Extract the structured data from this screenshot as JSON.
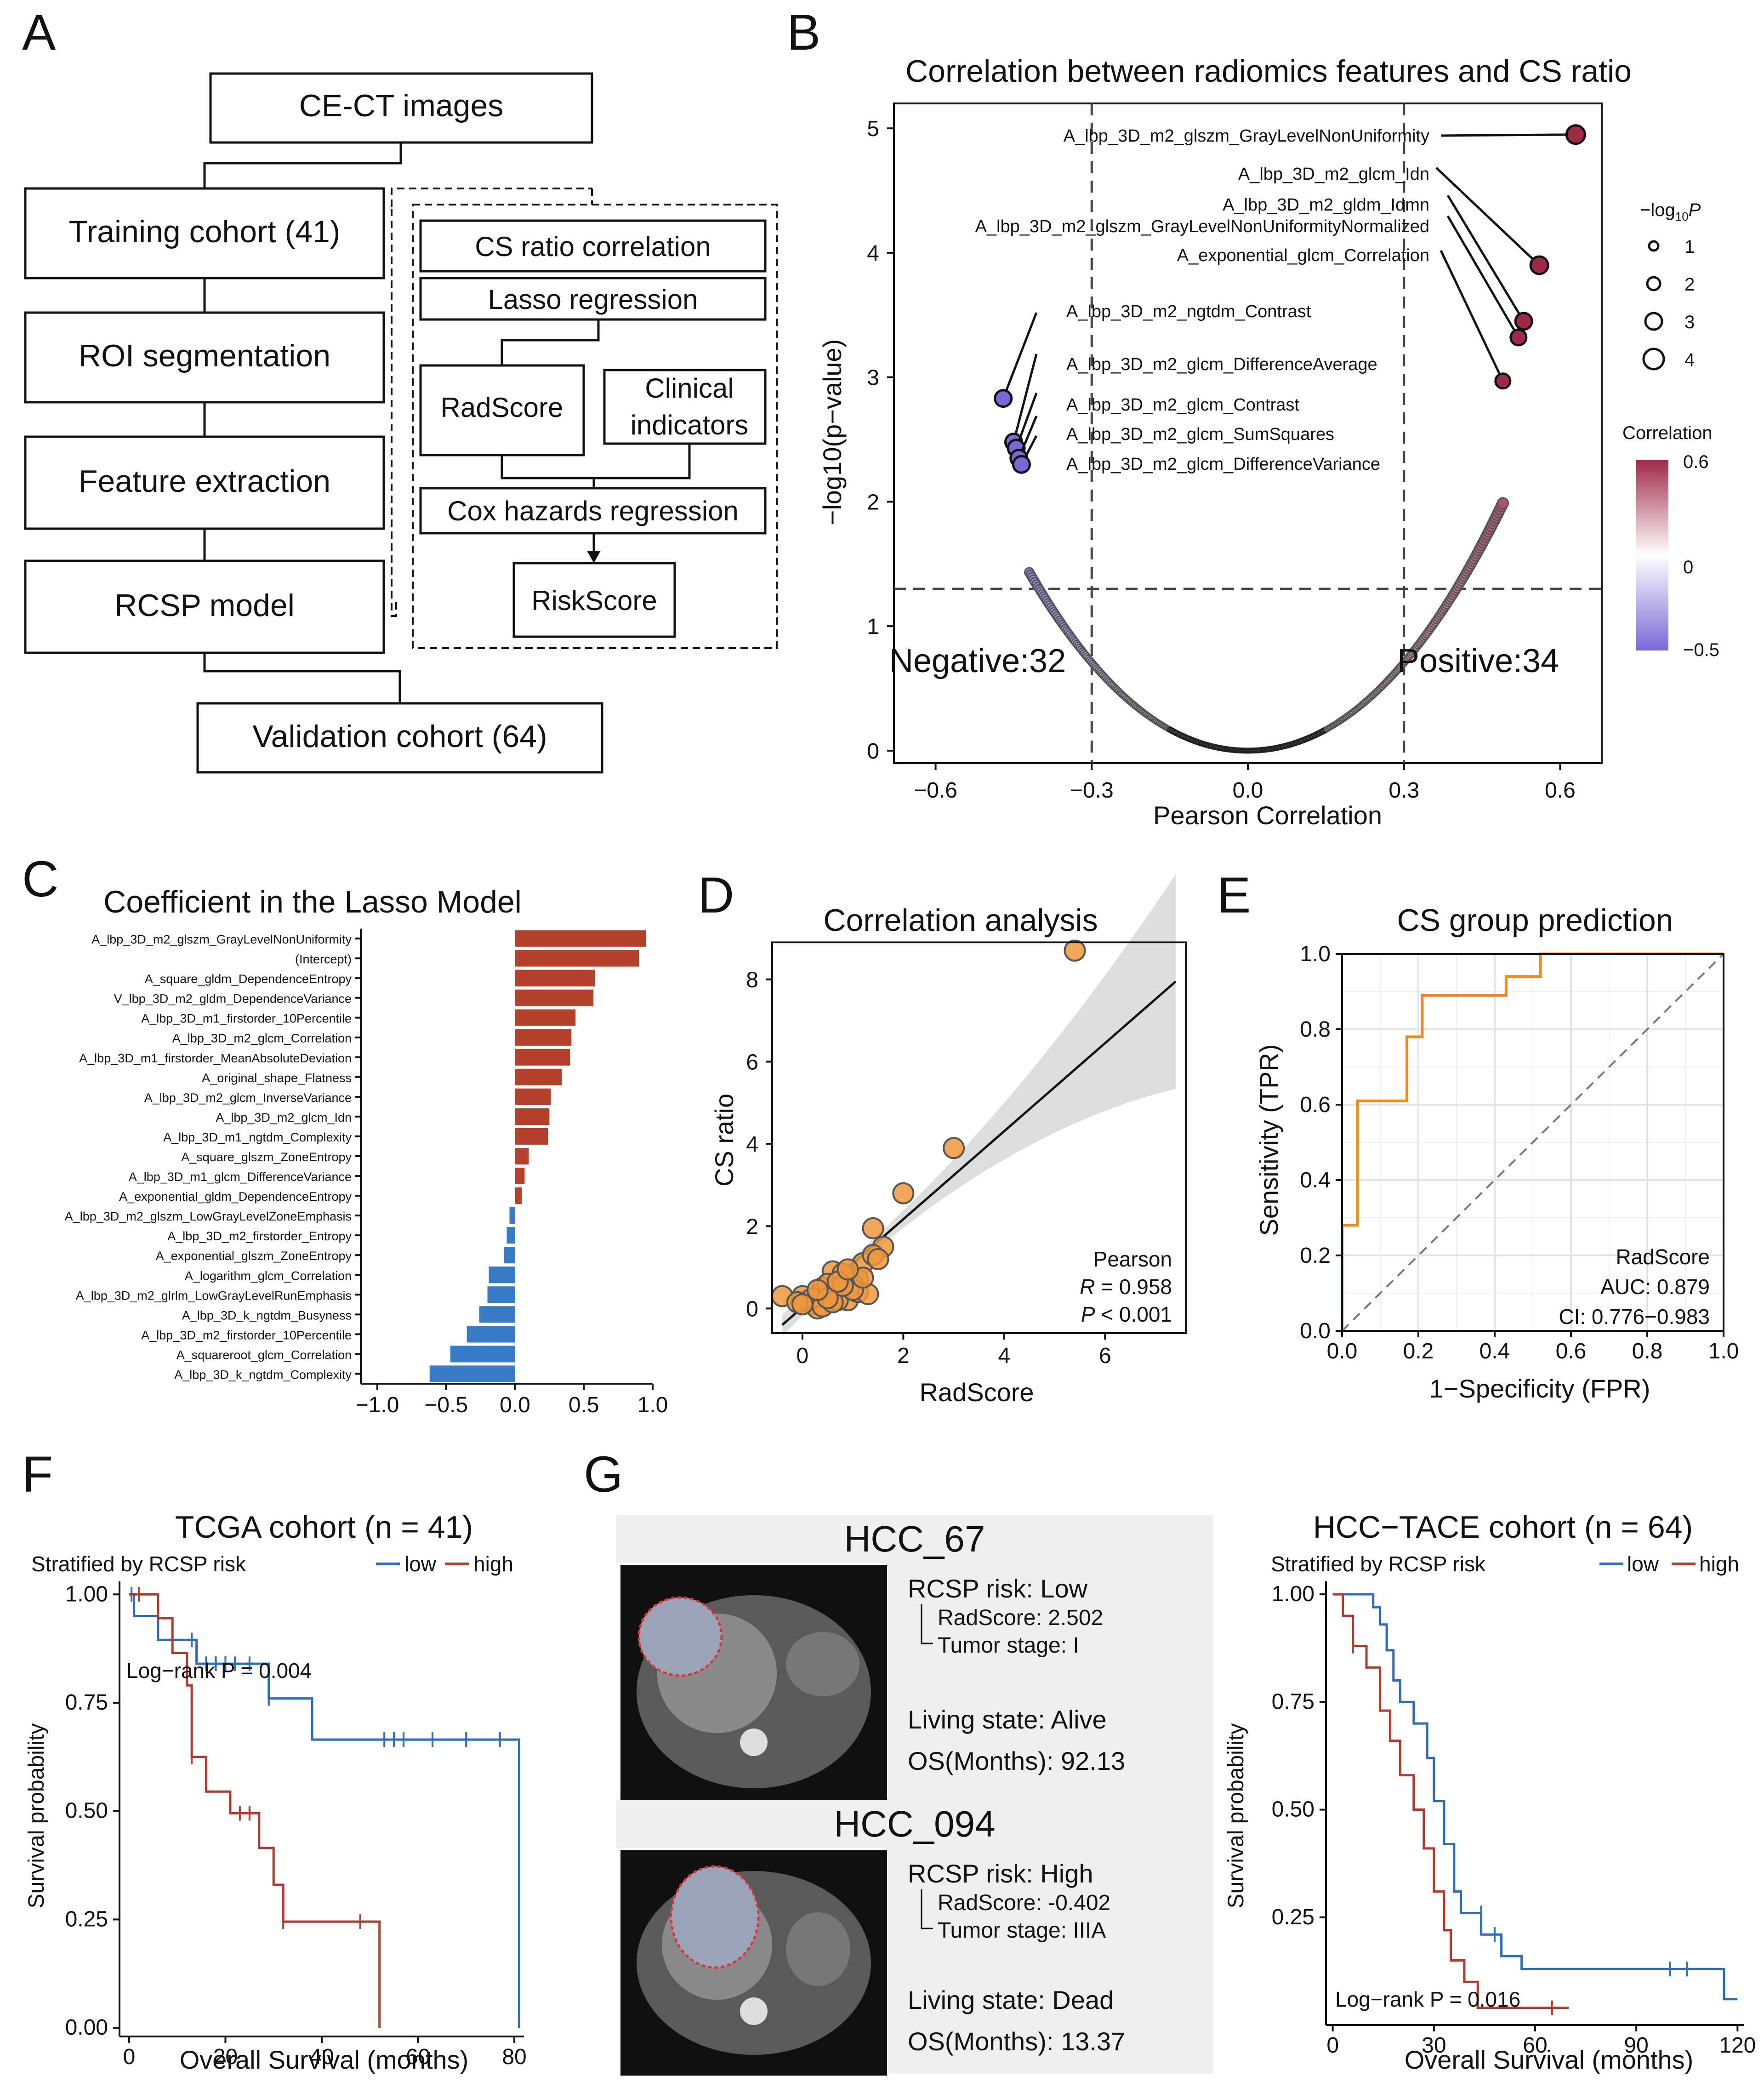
{
  "panels": {
    "a": {
      "letter": "A"
    },
    "b": {
      "letter": "B"
    },
    "c": {
      "letter": "C"
    },
    "d": {
      "letter": "D"
    },
    "e": {
      "letter": "E"
    },
    "f": {
      "letter": "F"
    },
    "g": {
      "letter": "G"
    }
  },
  "flowchart": {
    "ce_ct": "CE-CT images",
    "training": "Training cohort (41)",
    "roi": "ROI segmentation",
    "feature": "Feature extraction",
    "rcsp": "RCSP model",
    "validation": "Validation cohort (64)",
    "cs_ratio_corr": "CS ratio correlation",
    "lasso": "Lasso regression",
    "radscore": "RadScore",
    "clinical_1": "Clinical",
    "clinical_2": "indicators",
    "cox": "Cox hazards regression",
    "riskscore": "RiskScore"
  },
  "volcano": {
    "title": "Correlation between radiomics features and CS ratio",
    "xlabel": "Pearson Correlation",
    "ylabel": "−log10(p−value)",
    "negative_label": "Negative:32",
    "positive_label": "Positive:34",
    "negative_color": "#7b68d8",
    "positive_color": "#9e2a48",
    "xticks": [
      "−0.6",
      "−0.3",
      "0.0",
      "0.3",
      "0.6"
    ],
    "yticks": [
      "0",
      "1",
      "2",
      "3",
      "4",
      "5"
    ],
    "size_legend_title_a": "−log",
    "size_legend_title_sub": "10",
    "size_legend_title_b": "P",
    "size_legend": [
      "1",
      "2",
      "3",
      "4"
    ],
    "color_legend_title": "Correlation",
    "color_legend_ticks": [
      "0.6",
      "0",
      "−0.5"
    ],
    "labels_right": [
      "A_lbp_3D_m2_glszm_GrayLevelNonUniformity",
      "A_lbp_3D_m2_glcm_Idn",
      "A_lbp_3D_m2_gldm_Idmn",
      "A_lbp_3D_m2_glszm_GrayLevelNonUniformityNormalized",
      "A_exponential_glcm_Correlation"
    ],
    "labels_left": [
      "A_lbp_3D_m2_ngtdm_Contrast",
      "A_lbp_3D_m2_glcm_DifferenceAverage",
      "A_lbp_3D_m2_glcm_Contrast",
      "A_lbp_3D_m2_glcm_SumSquares",
      "A_lbp_3D_m2_glcm_DifferenceVariance"
    ],
    "chart_data": {
      "type": "scatter",
      "title": "Correlation between radiomics features and CS ratio",
      "xlabel": "Pearson Correlation",
      "ylabel": "-log10(p-value)",
      "xlim": [
        -0.68,
        0.68
      ],
      "ylim": [
        -0.1,
        5.2
      ],
      "threshold_x": [
        -0.3,
        0.3
      ],
      "threshold_y": 1.3,
      "counts": {
        "negative": 32,
        "positive": 34
      },
      "labeled_points": [
        {
          "name": "A_lbp_3D_m2_glszm_GrayLevelNonUniformity",
          "r": 0.63,
          "y": 4.95
        },
        {
          "name": "A_lbp_3D_m2_glcm_Idn",
          "r": 0.56,
          "y": 3.9
        },
        {
          "name": "A_lbp_3D_m2_gldm_Idmn",
          "r": 0.53,
          "y": 3.45
        },
        {
          "name": "A_lbp_3D_m2_glszm_GrayLevelNonUniformityNormalized",
          "r": 0.52,
          "y": 3.32
        },
        {
          "name": "A_exponential_glcm_Correlation",
          "r": 0.49,
          "y": 2.97
        },
        {
          "name": "A_lbp_3D_m2_ngtdm_Contrast",
          "r": -0.47,
          "y": 2.83
        },
        {
          "name": "A_lbp_3D_m2_glcm_DifferenceAverage",
          "r": -0.45,
          "y": 2.48
        },
        {
          "name": "A_lbp_3D_m2_glcm_Contrast",
          "r": -0.445,
          "y": 2.43
        },
        {
          "name": "A_lbp_3D_m2_glcm_SumSquares",
          "r": -0.44,
          "y": 2.35
        },
        {
          "name": "A_lbp_3D_m2_glcm_DifferenceVariance",
          "r": -0.435,
          "y": 2.3
        }
      ]
    }
  },
  "lasso": {
    "title": "Coefficient in the Lasso Model",
    "bar_pos_color": "#b5412d",
    "bar_neg_color": "#3a7bc8",
    "xticks": [
      "−1.0",
      "−0.5",
      "0.0",
      "0.5",
      "1.0"
    ],
    "chart_data": {
      "type": "bar",
      "orientation": "horizontal",
      "title": "Coefficient in the Lasso Model",
      "xlim": [
        -1.12,
        1.0
      ],
      "categories": [
        "A_lbp_3D_m2_glszm_GrayLevelNonUniformity",
        "(Intercept)",
        "A_square_gldm_DependenceEntropy",
        "V_lbp_3D_m2_gldm_DependenceVariance",
        "A_lbp_3D_m1_firstorder_10Percentile",
        "A_lbp_3D_m2_glcm_Correlation",
        "A_lbp_3D_m1_firstorder_MeanAbsoluteDeviation",
        "A_original_shape_Flatness",
        "A_lbp_3D_m2_glcm_InverseVariance",
        "A_lbp_3D_m2_glcm_Idn",
        "A_lbp_3D_m1_ngtdm_Complexity",
        "A_square_glszm_ZoneEntropy",
        "A_lbp_3D_m1_glcm_DifferenceVariance",
        "A_exponential_gldm_DependenceEntropy",
        "A_lbp_3D_m2_glszm_LowGrayLevelZoneEmphasis",
        "A_lbp_3D_m2_firstorder_Entropy",
        "A_exponential_glszm_ZoneEntropy",
        "A_logarithm_glcm_Correlation",
        "A_lbp_3D_m2_glrlm_LowGrayLevelRunEmphasis",
        "A_lbp_3D_k_ngtdm_Busyness",
        "A_lbp_3D_m2_firstorder_10Percentile",
        "A_squareroot_glcm_Correlation",
        "A_lbp_3D_k_ngtdm_Complexity"
      ],
      "values": [
        0.95,
        0.9,
        0.58,
        0.57,
        0.44,
        0.41,
        0.4,
        0.34,
        0.26,
        0.25,
        0.24,
        0.1,
        0.07,
        0.05,
        -0.04,
        -0.06,
        -0.08,
        -0.19,
        -0.2,
        -0.26,
        -0.35,
        -0.47,
        -0.62
      ]
    }
  },
  "correlation": {
    "title": "Correlation analysis",
    "xlabel": "RadScore",
    "ylabel": "CS ratio",
    "point_color": "#f0963c",
    "xticks": [
      "0",
      "2",
      "4",
      "6"
    ],
    "yticks": [
      "0",
      "2",
      "4",
      "6",
      "8"
    ],
    "stat_method": "Pearson",
    "stat_r_sym": "R",
    "stat_r_val": " = 0.958",
    "stat_p_sym": "P",
    "stat_p_val": " < 0.001",
    "chart_data": {
      "type": "scatter",
      "title": "Correlation analysis",
      "xlabel": "RadScore",
      "ylabel": "CS ratio",
      "xlim": [
        -0.6,
        7.6
      ],
      "ylim": [
        -0.6,
        8.9
      ],
      "fit_line": {
        "x": [
          -0.4,
          7.4
        ],
        "y": [
          -0.4,
          7.95
        ]
      },
      "pearson_r": 0.958,
      "p_value": "< 0.001",
      "x": [
        5.4,
        3.0,
        2.0,
        1.4,
        1.6,
        1.2,
        1.4,
        1.1,
        1.0,
        0.9,
        0.8,
        0.6,
        0.7,
        0.5,
        0.3,
        0.1,
        -0.4,
        0.2,
        0.4,
        0.0,
        0.6,
        0.9,
        1.1,
        0.5,
        0.7,
        0.3,
        0.8,
        1.3,
        0.2,
        -0.1,
        0.4,
        0.6,
        1.0,
        0.0,
        0.8,
        0.5,
        1.5,
        0.3,
        0.7,
        1.2,
        0.9
      ],
      "y": [
        8.7,
        3.9,
        2.8,
        1.95,
        1.5,
        1.1,
        1.3,
        0.7,
        0.6,
        0.8,
        0.7,
        0.9,
        0.5,
        0.4,
        0.3,
        0.2,
        0.3,
        0.1,
        0.5,
        0.3,
        0.3,
        0.2,
        0.4,
        0.6,
        0.2,
        0.0,
        0.85,
        0.35,
        0.25,
        0.15,
        0.05,
        0.15,
        0.45,
        0.1,
        0.55,
        0.25,
        1.2,
        0.45,
        0.65,
        0.75,
        0.95
      ]
    }
  },
  "roc": {
    "title": "CS group prediction",
    "xlabel": "1−Specificity (FPR)",
    "ylabel": "Sensitivity (TPR)",
    "line_color": "#f08a1e",
    "ticks": [
      "0.0",
      "0.2",
      "0.4",
      "0.6",
      "0.8",
      "1.0"
    ],
    "legend_name": "RadScore",
    "auc_text": "AUC: 0.879",
    "ci_text": "CI: 0.776−0.983",
    "chart_data": {
      "type": "line",
      "title": "CS group prediction",
      "xlabel": "1-Specificity (FPR)",
      "ylabel": "Sensitivity (TPR)",
      "xlim": [
        0,
        1
      ],
      "ylim": [
        0,
        1
      ],
      "auc": 0.879,
      "ci": [
        0.776,
        0.983
      ],
      "fpr": [
        0,
        0,
        0.04,
        0.04,
        0.09,
        0.09,
        0.17,
        0.17,
        0.21,
        0.21,
        0.26,
        0.26,
        0.43,
        0.43,
        0.52,
        0.52,
        1.0
      ],
      "tpr": [
        0,
        0.28,
        0.28,
        0.61,
        0.61,
        0.61,
        0.61,
        0.78,
        0.78,
        0.89,
        0.89,
        0.89,
        0.89,
        0.94,
        0.94,
        1.0,
        1.0
      ]
    }
  },
  "km_tcga": {
    "title": "TCGA cohort (n = 41)",
    "legend_title": "Stratified by RCSP risk",
    "legend_low": "low",
    "legend_high": "high",
    "color_low": "#2e6db5",
    "color_high": "#b03a2e",
    "xlabel": "Overall Survival (months)",
    "ylabel": "Survival probability",
    "logrank": "Log−rank P = 0.004",
    "xticks": [
      "0",
      "20",
      "40",
      "60",
      "80"
    ],
    "yticks": [
      "0.00",
      "0.25",
      "0.50",
      "0.75",
      "1.00"
    ],
    "chart_data": {
      "type": "line",
      "title": "TCGA cohort (n = 41)",
      "xlabel": "Overall Survival (months)",
      "ylabel": "Survival probability",
      "xlim": [
        -2,
        82
      ],
      "ylim": [
        -0.02,
        1.03
      ],
      "logrank_p": 0.004,
      "series": [
        {
          "name": "low",
          "x": [
            0,
            1,
            1,
            6,
            6,
            14,
            14,
            16,
            16,
            29,
            29,
            38,
            38,
            81,
            81
          ],
          "y": [
            1.0,
            1.0,
            0.95,
            0.95,
            0.895,
            0.895,
            0.84,
            0.84,
            0.84,
            0.84,
            0.76,
            0.76,
            0.665,
            0.665,
            0.0
          ]
        },
        {
          "name": "high",
          "x": [
            0,
            6,
            6,
            9,
            9,
            12,
            12,
            13,
            13,
            16,
            16,
            21,
            21,
            27,
            27,
            30,
            30,
            32,
            32,
            52,
            52
          ],
          "y": [
            1.0,
            1.0,
            0.945,
            0.945,
            0.865,
            0.865,
            0.79,
            0.79,
            0.625,
            0.625,
            0.545,
            0.545,
            0.495,
            0.495,
            0.415,
            0.415,
            0.33,
            0.33,
            0.245,
            0.245,
            0.0
          ]
        }
      ]
    }
  },
  "cases": {
    "case1": {
      "title": "HCC_67",
      "risk": "RCSP risk: Low",
      "radscore": "RadScore: 2.502",
      "stage": "Tumor stage: I",
      "living": "Living state: Alive",
      "os": "OS(Months): 92.13"
    },
    "case2": {
      "title": "HCC_094",
      "risk": "RCSP risk: High",
      "radscore": "RadScore: -0.402",
      "stage": "Tumor stage: IIIA",
      "living": "Living state: Dead",
      "os": "OS(Months): 13.37"
    }
  },
  "km_tace": {
    "title": "HCC−TACE cohort (n = 64)",
    "legend_title": "Stratified by RCSP risk",
    "legend_low": "low",
    "legend_high": "high",
    "color_low": "#2e6db5",
    "color_high": "#b03a2e",
    "xlabel": "Overall Survival (months)",
    "ylabel": "Survival probability",
    "logrank": "Log−rank P = 0.016",
    "xticks": [
      "0",
      "30",
      "60",
      "90",
      "120"
    ],
    "yticks": [
      "0.25",
      "0.50",
      "0.75",
      "1.00"
    ],
    "chart_data": {
      "type": "line",
      "title": "HCC-TACE cohort (n = 64)",
      "xlabel": "Overall Survival (months)",
      "ylabel": "Survival probability",
      "xlim": [
        -2,
        122
      ],
      "ylim": [
        0.0,
        1.03
      ],
      "logrank_p": 0.016,
      "series": [
        {
          "name": "low",
          "x": [
            0,
            12,
            12,
            14,
            14,
            16,
            16,
            18,
            18,
            20,
            20,
            24,
            24,
            28,
            28,
            30,
            30,
            33,
            33,
            36,
            36,
            38,
            38,
            44,
            44,
            50,
            50,
            56,
            56,
            116,
            116,
            120
          ],
          "y": [
            1.0,
            1.0,
            0.97,
            0.97,
            0.93,
            0.93,
            0.87,
            0.87,
            0.8,
            0.8,
            0.75,
            0.75,
            0.7,
            0.7,
            0.62,
            0.62,
            0.52,
            0.52,
            0.42,
            0.42,
            0.31,
            0.31,
            0.26,
            0.26,
            0.21,
            0.21,
            0.16,
            0.16,
            0.13,
            0.13,
            0.06,
            0.06
          ]
        },
        {
          "name": "high",
          "x": [
            0,
            3,
            3,
            6,
            6,
            10,
            10,
            14,
            14,
            17,
            17,
            20,
            20,
            24,
            24,
            27,
            27,
            30,
            30,
            33,
            33,
            35,
            35,
            39,
            39,
            43,
            43,
            70
          ],
          "y": [
            1.0,
            1.0,
            0.95,
            0.95,
            0.88,
            0.88,
            0.83,
            0.83,
            0.73,
            0.73,
            0.66,
            0.66,
            0.58,
            0.58,
            0.5,
            0.5,
            0.41,
            0.41,
            0.31,
            0.31,
            0.22,
            0.22,
            0.15,
            0.15,
            0.1,
            0.1,
            0.04,
            0.04
          ]
        }
      ]
    }
  }
}
